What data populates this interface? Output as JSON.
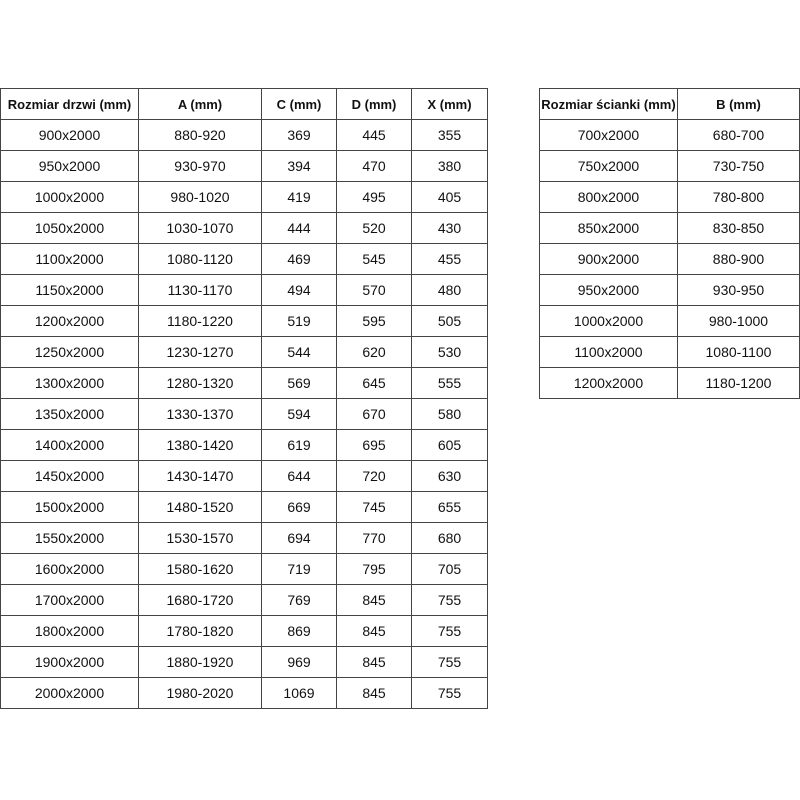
{
  "tables": [
    {
      "header": [
        "Rozmiar drzwi (mm)",
        "A (mm)",
        "C (mm)",
        "D (mm)",
        "X (mm)"
      ],
      "rows": [
        [
          "900x2000",
          "880-920",
          "369",
          "445",
          "355"
        ],
        [
          "950x2000",
          "930-970",
          "394",
          "470",
          "380"
        ],
        [
          "1000x2000",
          "980-1020",
          "419",
          "495",
          "405"
        ],
        [
          "1050x2000",
          "1030-1070",
          "444",
          "520",
          "430"
        ],
        [
          "1100x2000",
          "1080-1120",
          "469",
          "545",
          "455"
        ],
        [
          "1150x2000",
          "1130-1170",
          "494",
          "570",
          "480"
        ],
        [
          "1200x2000",
          "1180-1220",
          "519",
          "595",
          "505"
        ],
        [
          "1250x2000",
          "1230-1270",
          "544",
          "620",
          "530"
        ],
        [
          "1300x2000",
          "1280-1320",
          "569",
          "645",
          "555"
        ],
        [
          "1350x2000",
          "1330-1370",
          "594",
          "670",
          "580"
        ],
        [
          "1400x2000",
          "1380-1420",
          "619",
          "695",
          "605"
        ],
        [
          "1450x2000",
          "1430-1470",
          "644",
          "720",
          "630"
        ],
        [
          "1500x2000",
          "1480-1520",
          "669",
          "745",
          "655"
        ],
        [
          "1550x2000",
          "1530-1570",
          "694",
          "770",
          "680"
        ],
        [
          "1600x2000",
          "1580-1620",
          "719",
          "795",
          "705"
        ],
        [
          "1700x2000",
          "1680-1720",
          "769",
          "845",
          "755"
        ],
        [
          "1800x2000",
          "1780-1820",
          "869",
          "845",
          "755"
        ],
        [
          "1900x2000",
          "1880-1920",
          "969",
          "845",
          "755"
        ],
        [
          "2000x2000",
          "1980-2020",
          "1069",
          "845",
          "755"
        ]
      ]
    },
    {
      "header": [
        "Rozmiar ścianki (mm)",
        "B (mm)"
      ],
      "rows": [
        [
          "700x2000",
          "680-700"
        ],
        [
          "750x2000",
          "730-750"
        ],
        [
          "800x2000",
          "780-800"
        ],
        [
          "850x2000",
          "830-850"
        ],
        [
          "900x2000",
          "880-900"
        ],
        [
          "950x2000",
          "930-950"
        ],
        [
          "1000x2000",
          "980-1000"
        ],
        [
          "1100x2000",
          "1080-1100"
        ],
        [
          "1200x2000",
          "1180-1200"
        ]
      ]
    }
  ]
}
